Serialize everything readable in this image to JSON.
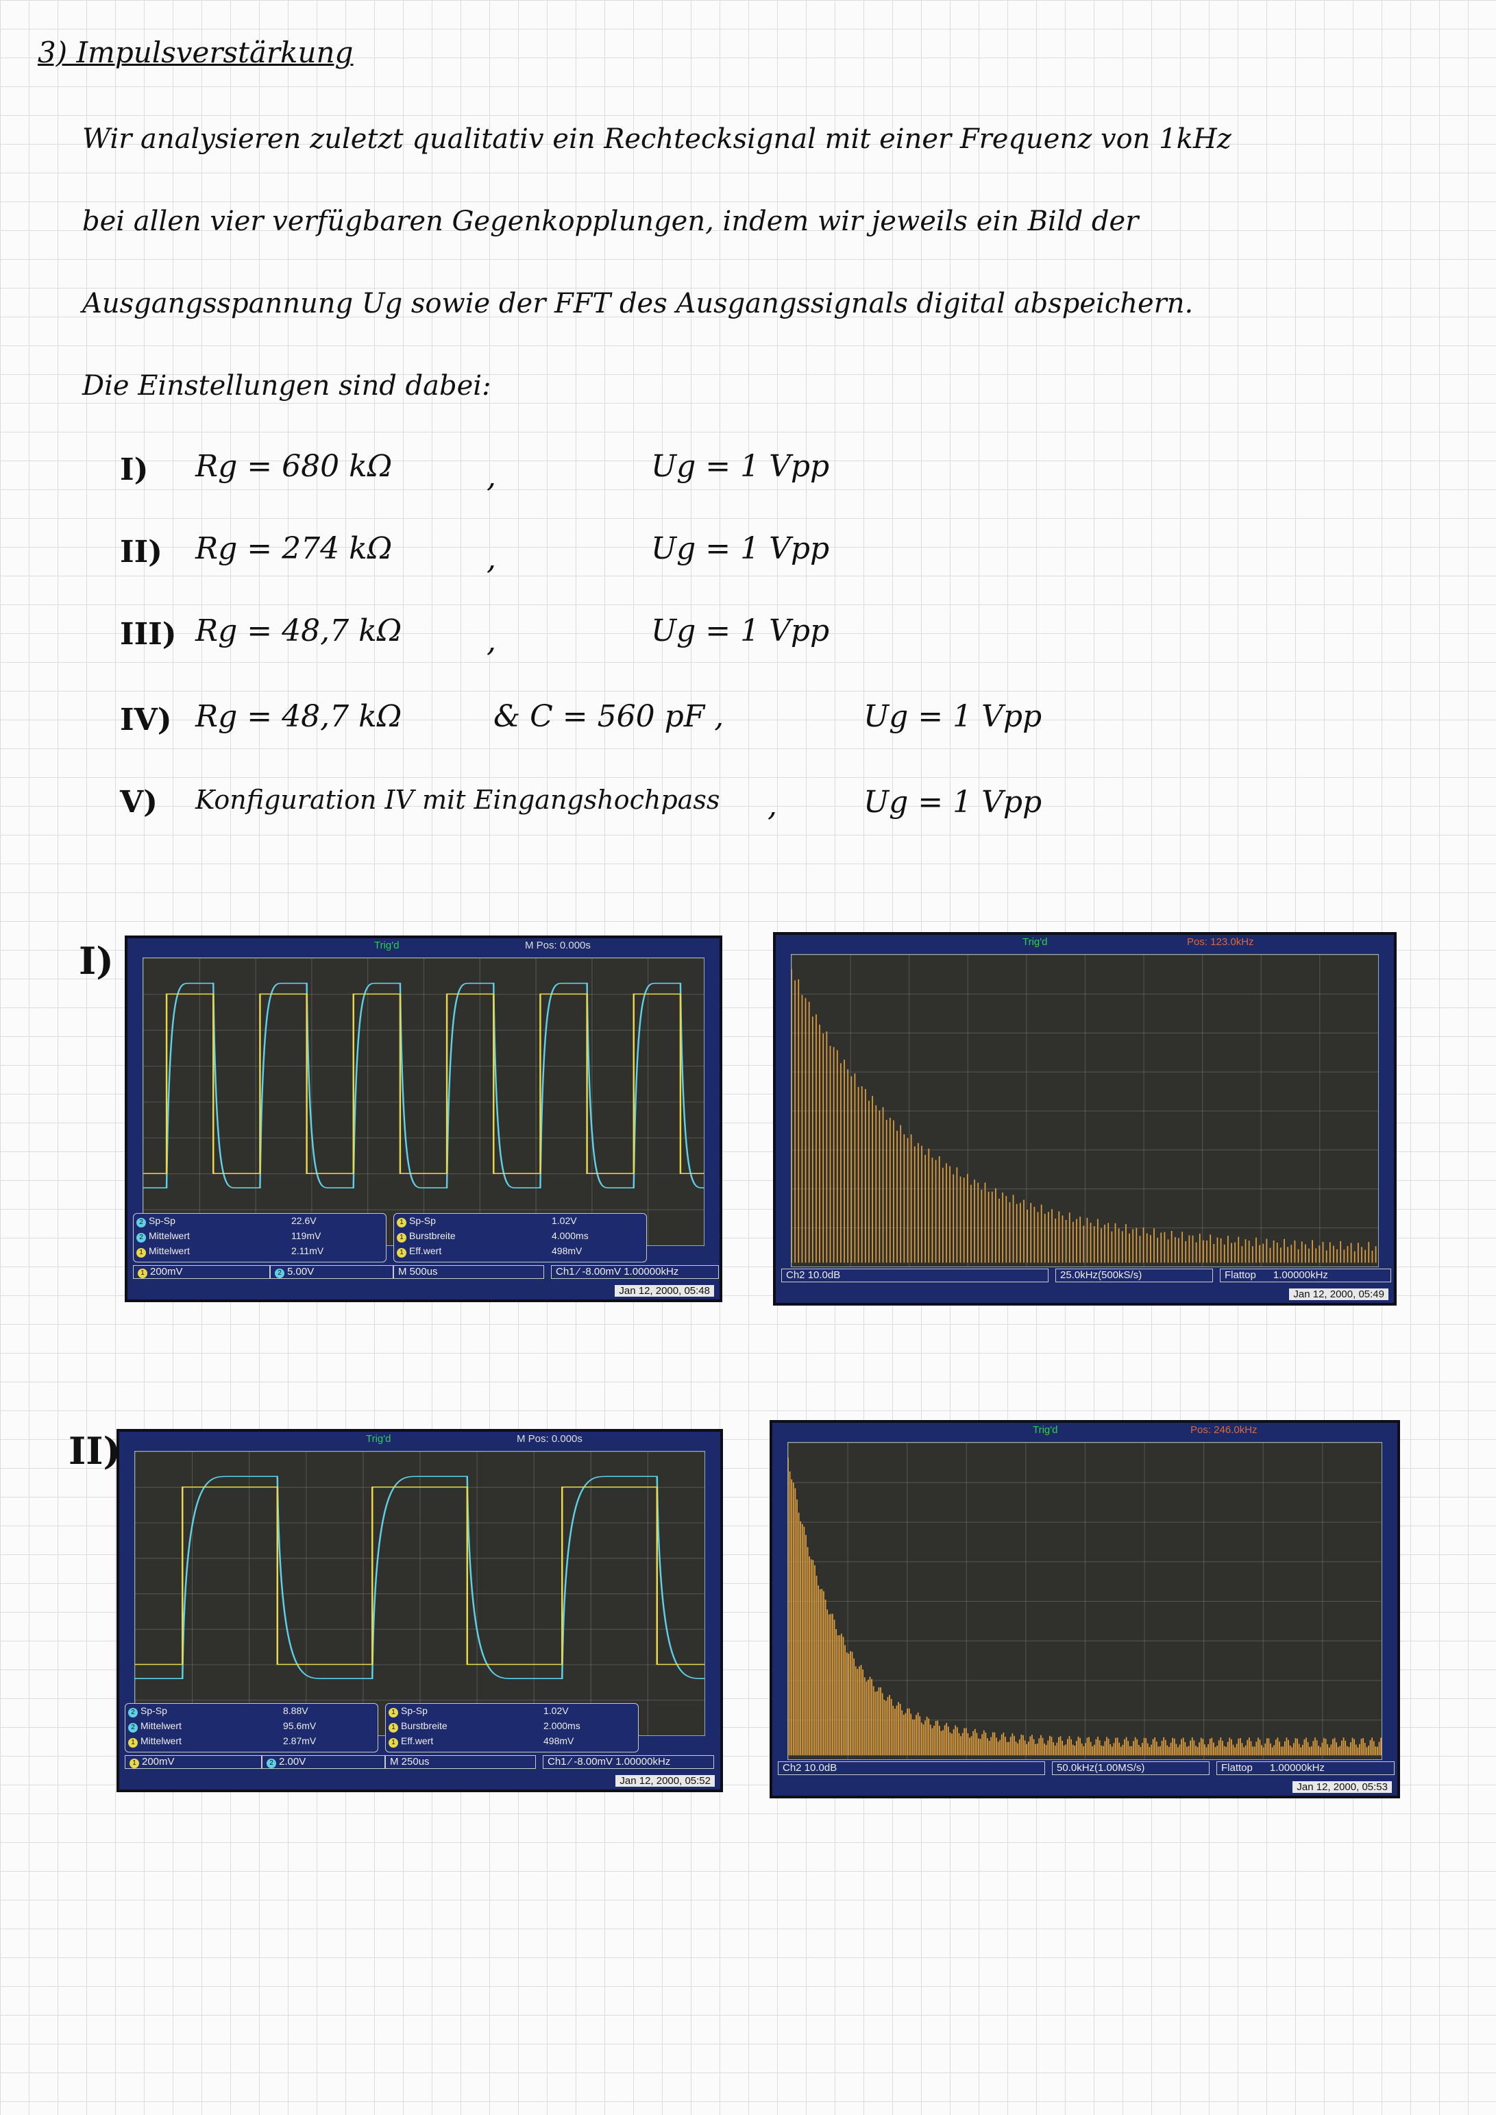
{
  "header": {
    "title": "3) Impulsverstärkung",
    "lines": [
      "Wir analysieren zuletzt qualitativ ein Rechtecksignal mit einer Frequenz von 1kHz",
      "bei allen vier verfügbaren Gegenkopplungen, indem wir jeweils ein Bild der",
      "Ausgangsspannung Ug sowie der FFT des Ausgangssignals digital abspeichern.",
      "Die Einstellungen sind dabei:"
    ]
  },
  "configs": [
    {
      "num": "I)",
      "rg": "Rg = 680 kΩ",
      "extra": ",",
      "ug": "Ug = 1 Vpp"
    },
    {
      "num": "II)",
      "rg": "Rg = 274 kΩ",
      "extra": ",",
      "ug": "Ug = 1 Vpp"
    },
    {
      "num": "III)",
      "rg": "Rg = 48,7 kΩ",
      "extra": ",",
      "ug": "Ug = 1 Vpp"
    },
    {
      "num": "IV)",
      "rg": "Rg = 48,7 kΩ",
      "extra": "& C = 560 pF ,",
      "ug": "Ug = 1 Vpp"
    },
    {
      "num": "V)",
      "rg": "Konfiguration IV mit Eingangshochpass",
      "extra": ",",
      "ug": "Ug = 1 Vpp"
    }
  ],
  "sections": [
    {
      "label": "I)",
      "time_scope": {
        "trig": "Trig'd",
        "mpos": "M Pos: 0.000s",
        "meas_left": [
          {
            "ch": "2",
            "name": "Sp-Sp",
            "value": "22.6V"
          },
          {
            "ch": "2",
            "name": "Mittelwert",
            "value": "119mV"
          },
          {
            "ch": "1",
            "name": "Mittelwert",
            "value": "2.11mV"
          }
        ],
        "meas_right": [
          {
            "ch": "1",
            "name": "Sp-Sp",
            "value": "1.02V"
          },
          {
            "ch": "1",
            "name": "Burstbreite",
            "value": "4.000ms"
          },
          {
            "ch": "1",
            "name": "Eff.wert",
            "value": "498mV"
          }
        ],
        "ch1_scale": "200mV",
        "ch2_scale": "5.00V",
        "timebase": "M 500us",
        "trigger": "Ch1 ⁄ -8.00mV",
        "freq": "1.00000kHz",
        "date": "Jan 12, 2000, 05:48",
        "pulses": 6
      },
      "fft_scope": {
        "trig": "Trig'd",
        "pos": "Pos: 123.0kHz",
        "ch": "Ch2",
        "db": "10.0dB",
        "span": "25.0kHz(500kS/s)",
        "window": "Flattop",
        "freq": "1.00000kHz",
        "date": "Jan 12, 2000, 05:49"
      }
    },
    {
      "label": "II)",
      "time_scope": {
        "trig": "Trig'd",
        "mpos": "M Pos: 0.000s",
        "meas_left": [
          {
            "ch": "2",
            "name": "Sp-Sp",
            "value": "8.88V"
          },
          {
            "ch": "2",
            "name": "Mittelwert",
            "value": "95.6mV"
          },
          {
            "ch": "1",
            "name": "Mittelwert",
            "value": "2.87mV"
          }
        ],
        "meas_right": [
          {
            "ch": "1",
            "name": "Sp-Sp",
            "value": "1.02V"
          },
          {
            "ch": "1",
            "name": "Burstbreite",
            "value": "2.000ms"
          },
          {
            "ch": "1",
            "name": "Eff.wert",
            "value": "498mV"
          }
        ],
        "ch1_scale": "200mV",
        "ch2_scale": "2.00V",
        "timebase": "M 250us",
        "trigger": "Ch1 ⁄ -8.00mV",
        "freq": "1.00000kHz",
        "date": "Jan 12, 2000, 05:52",
        "pulses": 3
      },
      "fft_scope": {
        "trig": "Trig'd",
        "pos": "Pos: 246.0kHz",
        "ch": "Ch2",
        "db": "10.0dB",
        "span": "50.0kHz(1.00MS/s)",
        "window": "Flattop",
        "freq": "1.00000kHz",
        "date": "Jan 12, 2000, 05:53"
      }
    }
  ],
  "colors": {
    "ch1": "#e8d84a",
    "ch2": "#5fd0e8",
    "fft": "#e0a040"
  }
}
